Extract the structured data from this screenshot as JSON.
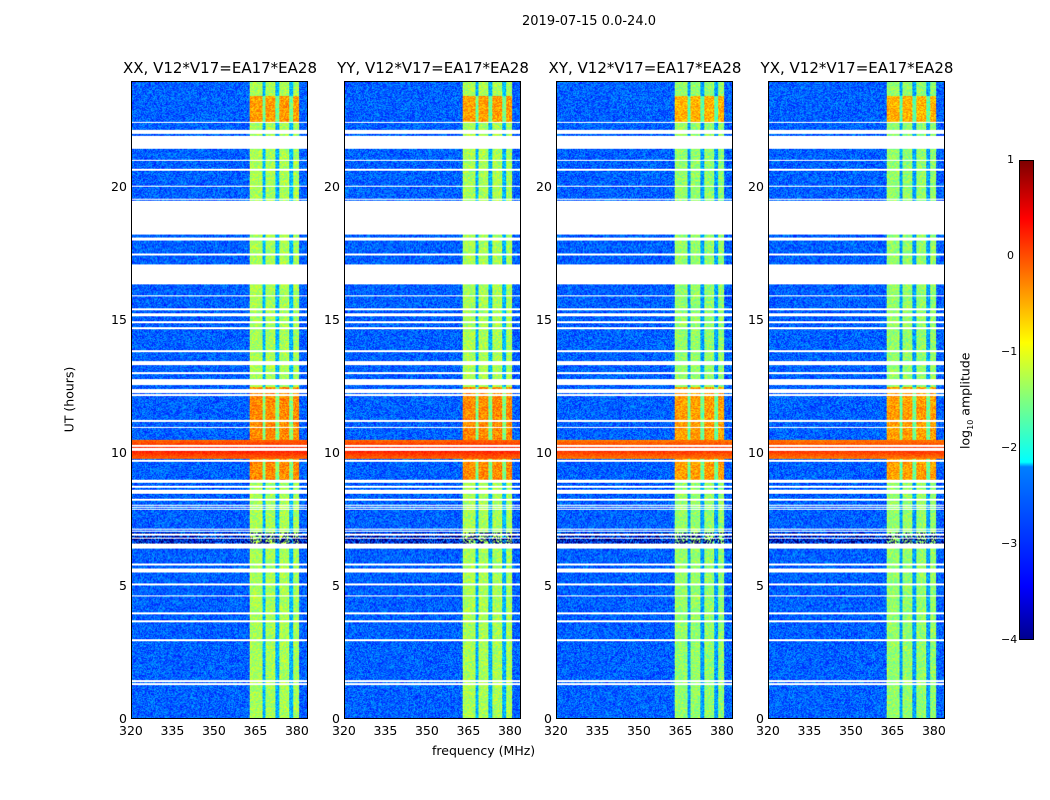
{
  "chart_data": {
    "type": "heatmap",
    "title": "2019-07-15 0.0-24.0",
    "xlabel": "frequency (MHz)",
    "ylabel": "UT (hours)",
    "xlim": [
      320,
      384
    ],
    "ylim": [
      0,
      24
    ],
    "xticks": [
      "320",
      "335",
      "350",
      "365",
      "380"
    ],
    "yticks": [
      "0",
      "5",
      "10",
      "15",
      "20"
    ],
    "panels": [
      {
        "title": "XX, V12*V17=EA17*EA28",
        "pol": "XX",
        "crosspol": false
      },
      {
        "title": "YY, V12*V17=EA17*EA28",
        "pol": "YY",
        "crosspol": false
      },
      {
        "title": "XY, V12*V17=EA17*EA28",
        "pol": "XY",
        "crosspol": true
      },
      {
        "title": "YX, V12*V17=EA17*EA28",
        "pol": "YX",
        "crosspol": true
      }
    ],
    "colorbar": {
      "label": "log10 amplitude",
      "label_main": "log",
      "label_sub": "10",
      "label_rest": " amplitude",
      "range": [
        -4,
        1
      ],
      "ticks": [
        "1",
        "0",
        "−1",
        "−2",
        "−3",
        "−4"
      ],
      "colormap": "jet"
    },
    "features": {
      "background_log_amp": -2.9,
      "rfi_band_MHz": [
        363,
        381
      ],
      "rfi_gaps_MHz": [
        368,
        373,
        378
      ],
      "rfi_band_log_amp": -1.3,
      "strong_event_hours": [
        9.8,
        10.5
      ],
      "strong_event_log_amp": 0.3,
      "bright_band_hours": [
        [
          9.0,
          12.5
        ],
        [
          22.5,
          23.5
        ]
      ],
      "flagged_hours": [
        [
          21.5,
          22.0
        ],
        [
          18.27,
          19.55
        ],
        [
          16.47,
          17.15
        ],
        [
          14.9,
          15.0
        ],
        [
          12.6,
          12.75
        ],
        [
          8.5,
          8.65
        ],
        [
          6.4,
          6.55
        ],
        [
          5.5,
          5.65
        ]
      ]
    }
  }
}
